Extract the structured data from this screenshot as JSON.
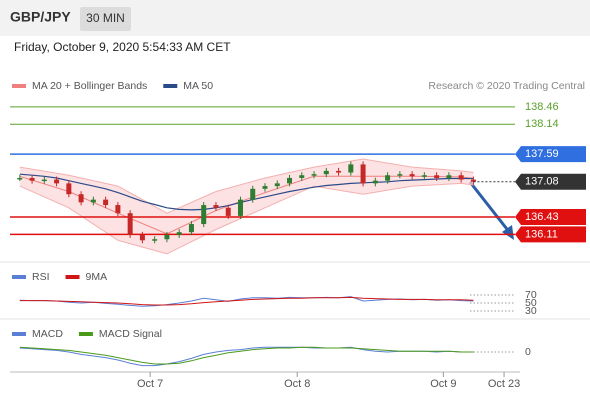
{
  "header": {
    "symbol": "GBP/JPY",
    "interval": "30 MIN",
    "datetime": "Friday, October 9, 2020 5:54:33 AM CET",
    "credit": "Research © 2020 Trading Central"
  },
  "chart_data": [
    {
      "type": "candlestick",
      "legend": [
        {
          "name": "MA 20 + Bollinger Bands",
          "color": "#f08080"
        },
        {
          "name": "MA 50",
          "color": "#2b4a8a"
        }
      ],
      "ylim": [
        135.6,
        138.68
      ],
      "closes": [
        137.15,
        137.1,
        137.12,
        137.05,
        136.85,
        136.7,
        136.75,
        136.65,
        136.5,
        136.1,
        136.0,
        136.02,
        136.1,
        136.15,
        136.3,
        136.65,
        136.6,
        136.45,
        136.75,
        136.95,
        137.0,
        137.05,
        137.15,
        137.2,
        137.22,
        137.28,
        137.25,
        137.4,
        137.05,
        137.1,
        137.2,
        137.22,
        137.18,
        137.2,
        137.15,
        137.2,
        137.12,
        137.08
      ],
      "ma50": [
        137.22,
        137.2,
        137.18,
        137.15,
        137.1,
        137.05,
        137.0,
        136.95,
        136.88,
        136.8,
        136.72,
        136.66,
        136.6,
        136.57,
        136.56,
        136.57,
        136.6,
        136.64,
        136.7,
        136.75,
        136.8,
        136.85,
        136.9,
        136.94,
        136.98,
        137.01,
        137.03,
        137.05,
        137.06,
        137.07,
        137.08,
        137.1,
        137.11,
        137.12,
        137.13,
        137.14,
        137.14,
        137.14
      ],
      "band_x": [
        0,
        4,
        8,
        12,
        16,
        20,
        24,
        28,
        32,
        36,
        37
      ],
      "band_upper": [
        137.35,
        137.2,
        137.0,
        136.5,
        136.9,
        137.15,
        137.35,
        137.5,
        137.35,
        137.28,
        137.25
      ],
      "band_mid": [
        137.18,
        136.9,
        136.5,
        136.12,
        136.55,
        136.88,
        137.18,
        137.18,
        137.18,
        137.17,
        137.14
      ],
      "band_lower": [
        137.0,
        136.6,
        136.0,
        135.75,
        136.2,
        136.6,
        137.0,
        136.85,
        137.0,
        137.05,
        137.02
      ],
      "levels": [
        {
          "value": 138.46,
          "color": "#5aa02c",
          "style": "text"
        },
        {
          "value": 138.14,
          "color": "#5aa02c",
          "style": "text"
        },
        {
          "value": 137.59,
          "color": "#2f6fe0",
          "style": "tag"
        },
        {
          "value": 136.43,
          "color": "#e01010",
          "style": "tag"
        },
        {
          "value": 136.11,
          "color": "#e01010",
          "style": "tag"
        }
      ],
      "colors": {
        "up": "#2e7d32",
        "down": "#c62828",
        "last": "#333333"
      }
    },
    {
      "type": "line",
      "legend": [
        {
          "name": "RSI",
          "color": "#5b7fd6"
        },
        {
          "name": "9MA",
          "color": "#d01515"
        }
      ],
      "ylim": [
        12.5,
        95
      ],
      "yticks": [
        30,
        50,
        70
      ],
      "series": [
        {
          "name": "RSI",
          "color": "#5b7fd6",
          "values": [
            57,
            56,
            56,
            55,
            52,
            50,
            52,
            49,
            47,
            44,
            42,
            43,
            46,
            50,
            55,
            62,
            58,
            54,
            60,
            63,
            63,
            62,
            64,
            63,
            63,
            64,
            63,
            66,
            55,
            57,
            59,
            60,
            58,
            59,
            57,
            58,
            56,
            55
          ]
        },
        {
          "name": "9MA",
          "color": "#d01515",
          "values": [
            56,
            56,
            56,
            55,
            54,
            53,
            52,
            51,
            50,
            48,
            46,
            45,
            45,
            46,
            48,
            51,
            53,
            55,
            57,
            59,
            60,
            61,
            62,
            62,
            63,
            63,
            63,
            64,
            62,
            61,
            60,
            59,
            59,
            59,
            58,
            58,
            58,
            57
          ]
        }
      ]
    },
    {
      "type": "line",
      "legend": [
        {
          "name": "MACD",
          "color": "#5b7fd6"
        },
        {
          "name": "MACD Signal",
          "color": "#4a9a1a"
        }
      ],
      "ylim": [
        -0.25,
        0.15
      ],
      "yticks": [
        0
      ],
      "series": [
        {
          "name": "MACD",
          "color": "#5b7fd6",
          "values": [
            0.05,
            0.04,
            0.03,
            0.02,
            0.0,
            -0.03,
            -0.05,
            -0.07,
            -0.1,
            -0.14,
            -0.17,
            -0.17,
            -0.15,
            -0.12,
            -0.08,
            -0.03,
            0.0,
            0.02,
            0.03,
            0.05,
            0.06,
            0.06,
            0.06,
            0.06,
            0.05,
            0.05,
            0.05,
            0.06,
            0.03,
            0.01,
            0.0,
            0.01,
            0.01,
            0.01,
            0.0,
            0.01,
            0.0,
            0.0
          ]
        },
        {
          "name": "MACD Signal",
          "color": "#4a9a1a",
          "values": [
            0.06,
            0.05,
            0.04,
            0.03,
            0.02,
            0.0,
            -0.02,
            -0.04,
            -0.07,
            -0.1,
            -0.13,
            -0.15,
            -0.15,
            -0.14,
            -0.11,
            -0.07,
            -0.04,
            -0.01,
            0.01,
            0.03,
            0.04,
            0.05,
            0.05,
            0.06,
            0.06,
            0.05,
            0.05,
            0.05,
            0.04,
            0.03,
            0.02,
            0.01,
            0.01,
            0.01,
            0.01,
            0.01,
            0.0,
            0.0
          ]
        }
      ],
      "xlim": [
        -0.8,
        40.8
      ],
      "xticks": [
        {
          "value": 10.63,
          "label": "Oct 7"
        },
        {
          "value": 22.63,
          "label": "Oct 8"
        },
        {
          "value": 34.55,
          "label": "Oct 9"
        },
        {
          "value": 39.5,
          "label": "Oct 23"
        }
      ]
    }
  ]
}
